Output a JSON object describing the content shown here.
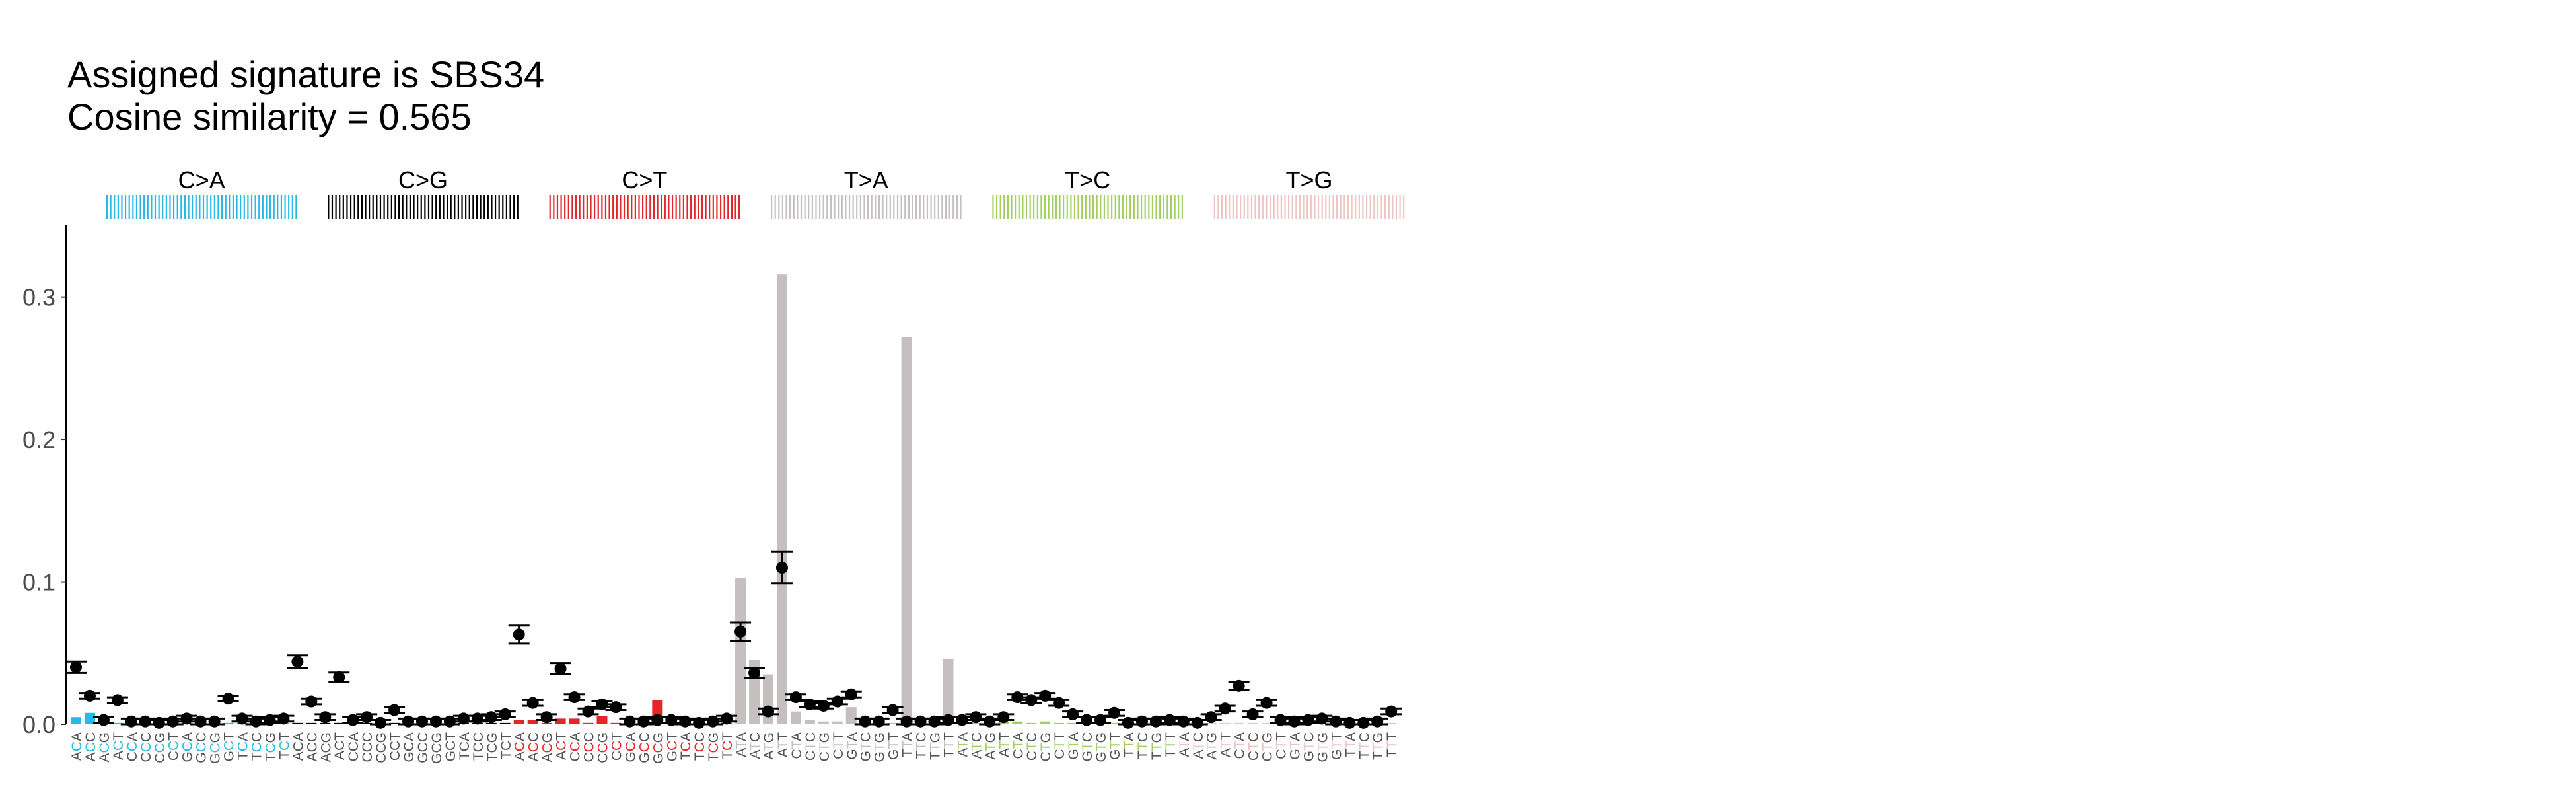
{
  "title_lines": [
    "Assigned signature is SBS34",
    "Cosine similarity = 0.565"
  ],
  "chart_data": {
    "type": "bar",
    "ylim": [
      0,
      0.33
    ],
    "y_ticks": [
      "0.0",
      "0.1",
      "0.2",
      "0.3"
    ],
    "y_tick_values": [
      0,
      0.1,
      0.2,
      0.3
    ],
    "grid": false,
    "groups": [
      {
        "name": "C>A",
        "color": "#29b9e6",
        "ref": "C"
      },
      {
        "name": "C>G",
        "color": "#000000",
        "ref": "C"
      },
      {
        "name": "C>T",
        "color": "#e3262a",
        "ref": "C"
      },
      {
        "name": "T>A",
        "color": "#c6bfc0",
        "ref": "T"
      },
      {
        "name": "T>C",
        "color": "#a3cf62",
        "ref": "T"
      },
      {
        "name": "T>G",
        "color": "#ecc5c5",
        "ref": "T"
      }
    ],
    "categories": [
      "ACA",
      "ACC",
      "ACG",
      "ACT",
      "CCA",
      "CCC",
      "CCG",
      "CCT",
      "GCA",
      "GCC",
      "GCG",
      "GCT",
      "TCA",
      "TCC",
      "TCG",
      "TCT",
      "ACA",
      "ACC",
      "ACG",
      "ACT",
      "CCA",
      "CCC",
      "CCG",
      "CCT",
      "GCA",
      "GCC",
      "GCG",
      "GCT",
      "TCA",
      "TCC",
      "TCG",
      "TCT",
      "ACA",
      "ACC",
      "ACG",
      "ACT",
      "CCA",
      "CCC",
      "CCG",
      "CCT",
      "GCA",
      "GCC",
      "GCG",
      "GCT",
      "TCA",
      "TCC",
      "TCG",
      "TCT",
      "ATA",
      "ATC",
      "ATG",
      "ATT",
      "CTA",
      "CTC",
      "CTG",
      "CTT",
      "GTA",
      "GTC",
      "GTG",
      "GTT",
      "TTA",
      "TTC",
      "TTG",
      "TTT",
      "ATA",
      "ATC",
      "ATG",
      "ATT",
      "CTA",
      "CTC",
      "CTG",
      "CTT",
      "GTA",
      "GTC",
      "GTG",
      "GTT",
      "TTA",
      "TTC",
      "TTG",
      "TTT",
      "ATA",
      "ATC",
      "ATG",
      "ATT",
      "CTA",
      "CTC",
      "CTG",
      "CTT",
      "GTA",
      "GTC",
      "GTG",
      "GTT",
      "TTA",
      "TTC",
      "TTG",
      "TTT"
    ],
    "series": [
      {
        "values": [
          0.005,
          0.008,
          0.002,
          0.001,
          0.001,
          0.001,
          0.001,
          0.001,
          0.001,
          0.001,
          0.001,
          0.001,
          0.001,
          0.001,
          0.001,
          0.001,
          0.001,
          0.001,
          0.001,
          0.001,
          0.001,
          0.001,
          0.001,
          0.001,
          0.001,
          0.001,
          0.001,
          0.001,
          0.001,
          0.001,
          0.001,
          0.001,
          0.003,
          0.003,
          0.001,
          0.004,
          0.004,
          0.001,
          0.006,
          0.001,
          0.001,
          0.001,
          0.017,
          0.001,
          0.001,
          0.001,
          0.001,
          0.001,
          0.103,
          0.045,
          0.035,
          0.316,
          0.009,
          0.003,
          0.002,
          0.002,
          0.012,
          0.001,
          0.001,
          0.001,
          0.272,
          0.001,
          0.005,
          0.046,
          0.002,
          0.001,
          0.001,
          0.002,
          0.002,
          0.001,
          0.002,
          0.001,
          0.001,
          0.001,
          0.001,
          0.001,
          0.002,
          0.006,
          0.002,
          0.006,
          0.002,
          0.001,
          0.001,
          0.001,
          0.001,
          0.001,
          0.001,
          0.001,
          0.001,
          0.001,
          0.001,
          0.001,
          0.001,
          0.001,
          0.001,
          0.001
        ]
      },
      {
        "values": [
          0.04,
          0.02,
          0.003,
          0.017,
          0.002,
          0.002,
          0.001,
          0.002,
          0.004,
          0.002,
          0.002,
          0.018,
          0.004,
          0.002,
          0.003,
          0.004,
          0.044,
          0.016,
          0.005,
          0.033,
          0.003,
          0.005,
          0.001,
          0.01,
          0.002,
          0.002,
          0.002,
          0.002,
          0.004,
          0.004,
          0.005,
          0.007,
          0.063,
          0.015,
          0.005,
          0.039,
          0.019,
          0.009,
          0.014,
          0.012,
          0.002,
          0.002,
          0.003,
          0.003,
          0.002,
          0.001,
          0.002,
          0.004,
          0.065,
          0.036,
          0.009,
          0.11,
          0.019,
          0.014,
          0.013,
          0.016,
          0.021,
          0.002,
          0.002,
          0.01,
          0.002,
          0.002,
          0.002,
          0.003,
          0.003,
          0.005,
          0.002,
          0.005,
          0.019,
          0.017,
          0.02,
          0.015,
          0.007,
          0.003,
          0.003,
          0.008,
          0.001,
          0.002,
          0.002,
          0.003,
          0.002,
          0.001,
          0.005,
          0.011,
          0.027,
          0.007,
          0.015,
          0.003,
          0.002,
          0.003,
          0.004,
          0.002,
          0.001,
          0.001,
          0.002,
          0.009
        ]
      }
    ]
  }
}
